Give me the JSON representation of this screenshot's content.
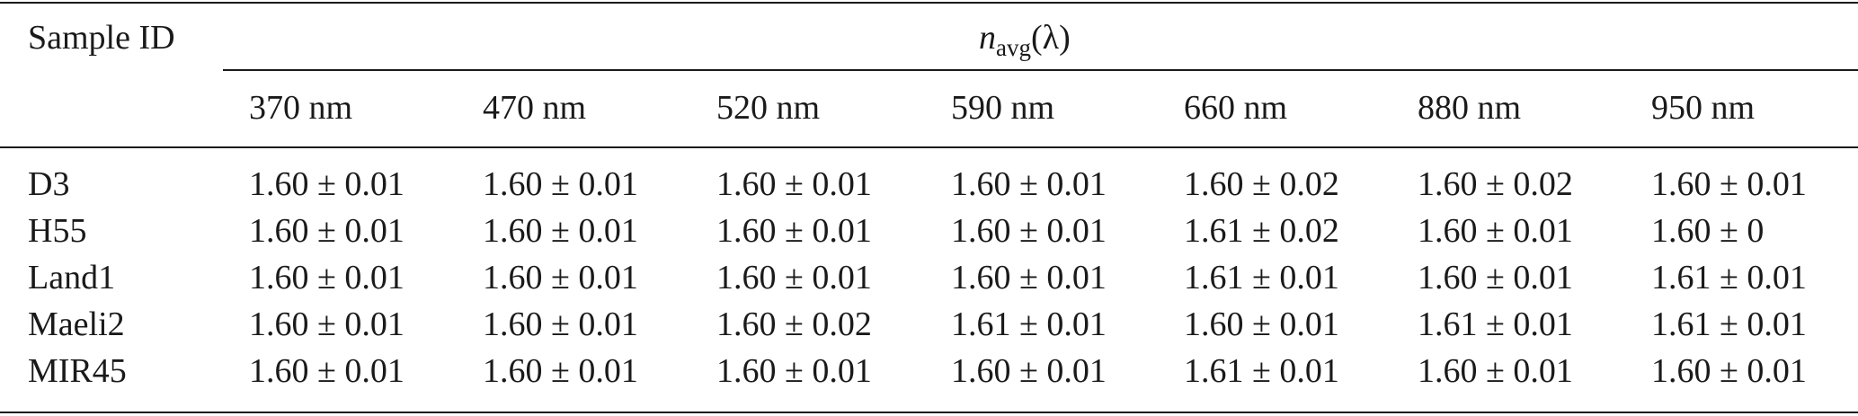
{
  "table": {
    "header": {
      "sample_id": "Sample ID",
      "group_symbol": "n",
      "group_subscript": "avg",
      "group_arg": "(λ)",
      "wavelengths": [
        "370 nm",
        "470 nm",
        "520 nm",
        "590 nm",
        "660 nm",
        "880 nm",
        "950 nm"
      ]
    },
    "rows": [
      {
        "label": "D3",
        "values": [
          "1.60 ± 0.01",
          "1.60 ± 0.01",
          "1.60 ± 0.01",
          "1.60 ± 0.01",
          "1.60 ± 0.02",
          "1.60 ± 0.02",
          "1.60 ± 0.01"
        ]
      },
      {
        "label": "H55",
        "values": [
          "1.60 ± 0.01",
          "1.60 ± 0.01",
          "1.60 ± 0.01",
          "1.60 ± 0.01",
          "1.61 ± 0.02",
          "1.60 ± 0.01",
          "1.60 ± 0"
        ]
      },
      {
        "label": "Land1",
        "values": [
          "1.60 ± 0.01",
          "1.60 ± 0.01",
          "1.60 ± 0.01",
          "1.60 ± 0.01",
          "1.61 ± 0.01",
          "1.60 ± 0.01",
          "1.61 ± 0.01"
        ]
      },
      {
        "label": "Maeli2",
        "values": [
          "1.60 ± 0.01",
          "1.60 ± 0.01",
          "1.60 ± 0.02",
          "1.61 ± 0.01",
          "1.60 ± 0.01",
          "1.61 ± 0.01",
          "1.61 ± 0.01"
        ]
      },
      {
        "label": "MIR45",
        "values": [
          "1.60 ± 0.01",
          "1.60 ± 0.01",
          "1.60 ± 0.01",
          "1.60 ± 0.01",
          "1.61 ± 0.01",
          "1.60 ± 0.01",
          "1.60 ± 0.01"
        ]
      }
    ]
  }
}
